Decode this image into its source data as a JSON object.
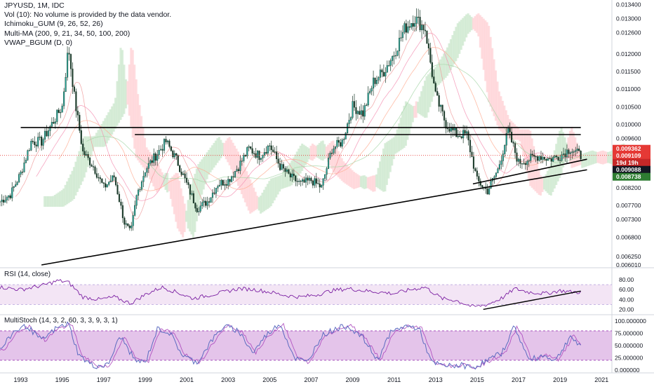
{
  "header": {
    "symbol": "JPYUSD, 1M, IDC",
    "indicators": [
      "Vol (10): No volume is provided by the data vendor.",
      "Ichimoku_GUM (9, 26, 52, 26)",
      "Multi-MA (200, 9, 21, 34, 50, 100, 200)",
      "VWAP_BGUM (D, 0)"
    ]
  },
  "rsi_label": "RSI (14, close)",
  "stoch_label": "MultiStoch (14, 3, 2, 60, 3, 3, 9, 3, 1)",
  "colors": {
    "bull": "#26a69a",
    "bear": "#ef5350",
    "candle_body": "#1b3a2a",
    "ichimoku_green": "#c8e6c9",
    "ichimoku_red": "#ffcdd2",
    "rsi_band": "#f3e5f5",
    "rsi_line": "#7b1fa2",
    "stoch_band": "#ce93d8",
    "stoch_line": "#5c6bc0",
    "price_dotted": "#e53935"
  },
  "chart_data": [
    {
      "type": "candlestick",
      "title": "JPYUSD, 1M, IDC",
      "x_range": [
        1992.0,
        2021.5
      ],
      "ylim": [
        0.006,
        0.0134
      ],
      "y_ticks": [
        "0.013400",
        "0.013000",
        "0.012600",
        "0.012000",
        "0.011500",
        "0.011000",
        "0.010500",
        "0.010000",
        "0.009600",
        "0.009100",
        "0.008600",
        "0.008200",
        "0.007700",
        "0.007300",
        "0.006800",
        "0.006250",
        "0.006010"
      ],
      "x_ticks": [
        "1993",
        "1995",
        "1997",
        "1999",
        "2001",
        "2003",
        "2005",
        "2007",
        "2009",
        "2011",
        "2013",
        "2015",
        "2017",
        "2019",
        "2021"
      ],
      "price_series": {
        "x": [
          1992.0,
          1992.5,
          1993.0,
          1993.5,
          1994.0,
          1994.5,
          1995.0,
          1995.3,
          1995.6,
          1996.0,
          1996.5,
          1997.0,
          1997.5,
          1998.0,
          1998.3,
          1998.6,
          1999.0,
          1999.5,
          2000.0,
          2000.5,
          2001.0,
          2001.5,
          2002.0,
          2002.5,
          2003.0,
          2003.5,
          2004.0,
          2004.5,
          2005.0,
          2005.5,
          2006.0,
          2006.5,
          2007.0,
          2007.5,
          2008.0,
          2008.5,
          2009.0,
          2009.5,
          2010.0,
          2010.5,
          2011.0,
          2011.5,
          2012.0,
          2012.5,
          2013.0,
          2013.5,
          2014.0,
          2014.5,
          2015.0,
          2015.5,
          2016.0,
          2016.5,
          2017.0,
          2017.5,
          2018.0,
          2018.5,
          2019.0,
          2019.5,
          2020.0
        ],
        "y": [
          0.0078,
          0.008,
          0.0086,
          0.0095,
          0.0095,
          0.01,
          0.0105,
          0.0122,
          0.0107,
          0.0092,
          0.0088,
          0.0082,
          0.0085,
          0.0072,
          0.0069,
          0.008,
          0.0087,
          0.0091,
          0.0095,
          0.009,
          0.0083,
          0.0076,
          0.0078,
          0.0083,
          0.0084,
          0.0088,
          0.0093,
          0.0091,
          0.0094,
          0.0088,
          0.0085,
          0.0083,
          0.0084,
          0.0082,
          0.0093,
          0.0095,
          0.0105,
          0.0103,
          0.0112,
          0.0115,
          0.012,
          0.0127,
          0.013,
          0.0127,
          0.0108,
          0.01,
          0.0097,
          0.0097,
          0.0084,
          0.0081,
          0.0087,
          0.0098,
          0.0089,
          0.009,
          0.0091,
          0.009,
          0.0091,
          0.0093,
          0.0091
        ]
      },
      "reference_lines": [
        {
          "y": 0.0099,
          "x_range": [
            1993.0,
            2020.0
          ]
        },
        {
          "y": 0.0097,
          "x_range": [
            1998.5,
            2020.0
          ]
        }
      ],
      "trend_lines": [
        {
          "from": [
            1994.0,
            0.006
          ],
          "to": [
            2020.3,
            0.0087
          ]
        },
        {
          "from": [
            2014.8,
            0.0083
          ],
          "to": [
            2020.3,
            0.009
          ]
        }
      ],
      "price_labels": [
        {
          "text": "0.009362",
          "value": 0.009362,
          "color": "#e53935"
        },
        {
          "text": "0.009109",
          "value": 0.009109,
          "color": "#e53935"
        },
        {
          "text": "19d 19h",
          "value": 0.009,
          "color": "#c62828"
        },
        {
          "text": "0.009088",
          "value": 0.009088,
          "color": "#131722"
        },
        {
          "text": "0.008738",
          "value": 0.008738,
          "color": "#2e7d32"
        }
      ]
    },
    {
      "type": "line",
      "title": "RSI (14, close)",
      "ylim": [
        15,
        90
      ],
      "y_ticks": [
        "80.00",
        "60.00",
        "40.00",
        "20.00"
      ],
      "band": [
        30,
        70
      ],
      "x": [
        1992.0,
        1993.0,
        1994.0,
        1994.8,
        1995.3,
        1996.0,
        1996.8,
        1997.5,
        1998.3,
        1999.0,
        1999.8,
        2000.5,
        2001.3,
        2002.0,
        2002.8,
        2003.5,
        2004.3,
        2005.0,
        2005.8,
        2006.5,
        2007.3,
        2008.0,
        2008.8,
        2009.5,
        2010.3,
        2011.0,
        2011.8,
        2012.5,
        2013.3,
        2014.0,
        2014.8,
        2015.5,
        2016.3,
        2016.8,
        2017.5,
        2018.3,
        2019.0,
        2019.6,
        2020.0
      ],
      "y": [
        65,
        60,
        68,
        78,
        75,
        45,
        40,
        45,
        32,
        50,
        65,
        55,
        42,
        48,
        55,
        62,
        60,
        55,
        48,
        45,
        50,
        58,
        62,
        58,
        55,
        52,
        60,
        65,
        42,
        38,
        25,
        30,
        45,
        62,
        55,
        52,
        58,
        55,
        55
      ],
      "trend_line": {
        "from": [
          2015.3,
          20
        ],
        "to": [
          2020.0,
          57
        ]
      }
    },
    {
      "type": "line",
      "title": "MultiStoch (14, 3, 2, 60, 3, 3, 9, 3, 1)",
      "ylim": [
        0,
        100
      ],
      "y_ticks": [
        "100.000000",
        "75.000000",
        "50.000000",
        "25.000000",
        "0.000000"
      ],
      "band": [
        20,
        80
      ],
      "x": [
        1992.0,
        1992.7,
        1993.3,
        1994.0,
        1994.7,
        1995.3,
        1995.8,
        1996.5,
        1997.2,
        1997.8,
        1998.5,
        1999.0,
        1999.6,
        2000.2,
        2000.8,
        2001.5,
        2002.2,
        2002.8,
        2003.5,
        2004.2,
        2004.8,
        2005.5,
        2006.2,
        2006.8,
        2007.5,
        2008.2,
        2008.8,
        2009.5,
        2010.2,
        2010.8,
        2011.5,
        2012.2,
        2012.8,
        2013.5,
        2014.2,
        2014.8,
        2015.5,
        2016.2,
        2016.8,
        2017.5,
        2018.2,
        2018.8,
        2019.5,
        2020.0
      ],
      "y": [
        40,
        80,
        90,
        60,
        85,
        95,
        30,
        8,
        10,
        70,
        20,
        15,
        85,
        75,
        30,
        15,
        60,
        90,
        80,
        35,
        70,
        95,
        25,
        15,
        70,
        85,
        90,
        65,
        20,
        75,
        90,
        85,
        15,
        8,
        10,
        5,
        20,
        35,
        90,
        20,
        30,
        20,
        70,
        45
      ]
    }
  ]
}
